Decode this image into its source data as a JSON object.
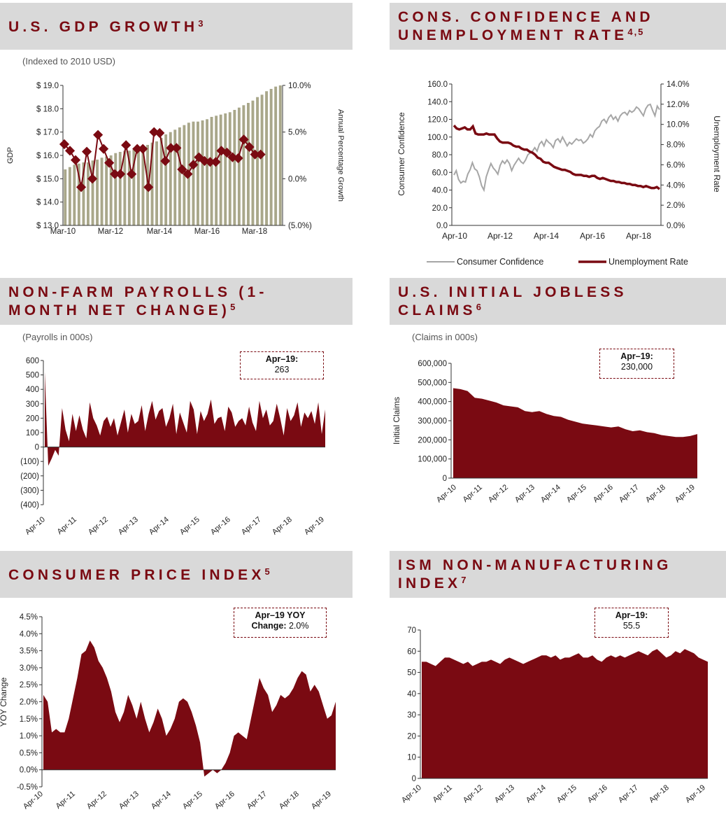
{
  "colors": {
    "accent": "#7a0a12",
    "header_bg": "#d9d9d9",
    "bar": "#a9a78a",
    "gray_line": "#a6a6a6",
    "fill": "#7a0a12"
  },
  "gdp": {
    "title": "U.S. GDP GROWTH",
    "sup": "3",
    "subtitle": "(Indexed to 2010 USD)",
    "chart_data": {
      "type": "bar+line",
      "title": "U.S. GDP Growth",
      "ylabel": "GDP",
      "y2label": "Annual Percentage  Growth",
      "ylim": [
        13.0,
        19.0
      ],
      "y2lim": [
        -5.0,
        10.0
      ],
      "y_ticks": [
        "$ 19.0",
        "$ 18.0",
        "$ 17.0",
        "$ 16.0",
        "$ 15.0",
        "$ 14.0",
        "$ 13.0"
      ],
      "y2_ticks": [
        "10.0%",
        "5.0%",
        "0.0%",
        "(5.0%)"
      ],
      "x_ticks": [
        "Mar-10",
        "Mar-12",
        "Mar-14",
        "Mar-16",
        "Mar-18"
      ],
      "gdp": [
        15.4,
        15.5,
        15.6,
        15.65,
        15.7,
        15.7,
        15.78,
        15.82,
        15.9,
        15.95,
        16.0,
        16.1,
        16.15,
        16.2,
        16.2,
        16.25,
        16.3,
        16.35,
        16.45,
        16.55,
        16.6,
        16.75,
        16.9,
        17.0,
        17.1,
        17.2,
        17.3,
        17.4,
        17.45,
        17.45,
        17.5,
        17.55,
        17.65,
        17.7,
        17.75,
        17.8,
        17.85,
        17.95,
        18.05,
        18.15,
        18.25,
        18.35,
        18.5,
        18.6,
        18.75,
        18.85,
        18.95,
        19.0
      ],
      "growth": [
        3.7,
        3.0,
        2.0,
        -0.9,
        2.9,
        0.0,
        4.7,
        3.2,
        1.7,
        0.5,
        0.5,
        3.6,
        0.5,
        3.2,
        3.2,
        -0.9,
        5.0,
        4.9,
        1.9,
        3.3,
        3.3,
        1.0,
        0.5,
        1.5,
        2.3,
        1.9,
        1.8,
        1.8,
        3.0,
        2.8,
        2.3,
        2.2,
        4.2,
        3.4,
        2.6,
        2.6
      ]
    }
  },
  "cons": {
    "title": "CONS. CONFIDENCE AND\nUNEMPLOYMENT RATE",
    "sup": "4,5",
    "chart_data": {
      "type": "line",
      "ylabel": "Consumer  Confidence",
      "y2label": "Unemployment  Rate",
      "ylim": [
        0,
        160
      ],
      "y2lim": [
        0,
        14
      ],
      "y_ticks": [
        "160.0",
        "140.0",
        "120.0",
        "100.0",
        "80.0",
        "60.0",
        "40.0",
        "20.0",
        "0.0"
      ],
      "y2_ticks": [
        "14.0%",
        "12.0%",
        "10.0%",
        "8.0%",
        "6.0%",
        "4.0%",
        "2.0%",
        "0.0%"
      ],
      "x_ticks": [
        "Apr-10",
        "Apr-12",
        "Apr-14",
        "Apr-16",
        "Apr-18"
      ],
      "legend": [
        "Consumer Confidence",
        "Unemployment Rate"
      ],
      "series": [
        {
          "name": "Consumer Confidence",
          "values": [
            57,
            62,
            52,
            48,
            50,
            49,
            58,
            63,
            71,
            64,
            62,
            55,
            45,
            40,
            55,
            63,
            70,
            65,
            62,
            58,
            68,
            73,
            70,
            74,
            70,
            62,
            68,
            72,
            76,
            72,
            70,
            74,
            80,
            82,
            84,
            88,
            84,
            92,
            95,
            90,
            97,
            94,
            92,
            88,
            96,
            98,
            94,
            100,
            95,
            90,
            94,
            92,
            95,
            98,
            96,
            97,
            93,
            95,
            98,
            103,
            100,
            107,
            110,
            112,
            118,
            120,
            116,
            122,
            125,
            120,
            123,
            118,
            124,
            127,
            128,
            125,
            130,
            128,
            130,
            134,
            132,
            128,
            124,
            132,
            136,
            137,
            130,
            124,
            135,
            131
          ]
        },
        {
          "name": "Unemployment Rate",
          "values": [
            9.9,
            9.6,
            9.5,
            9.6,
            9.7,
            9.5,
            9.5,
            9.8,
            9.1,
            9.0,
            9.0,
            9.0,
            9.1,
            9.0,
            9.0,
            9.0,
            8.6,
            8.3,
            8.2,
            8.2,
            8.2,
            8.1,
            7.9,
            7.8,
            7.8,
            7.6,
            7.5,
            7.5,
            7.3,
            7.2,
            7.0,
            6.7,
            6.6,
            6.3,
            6.2,
            6.2,
            6.0,
            5.8,
            5.7,
            5.6,
            5.5,
            5.5,
            5.4,
            5.3,
            5.1,
            5.0,
            5.0,
            5.0,
            4.9,
            4.9,
            4.8,
            4.9,
            4.9,
            4.7,
            4.6,
            4.7,
            4.6,
            4.5,
            4.4,
            4.4,
            4.3,
            4.3,
            4.2,
            4.2,
            4.1,
            4.1,
            4.0,
            4.0,
            3.9,
            3.9,
            3.8,
            3.9,
            3.8,
            3.7,
            3.7,
            3.8,
            3.6
          ]
        }
      ]
    }
  },
  "nfp": {
    "title": "NON-FARM PAYROLLS (1-\nMONTH NET CHANGE)",
    "sup": "5",
    "subtitle": "(Payrolls in 000s)",
    "callout": {
      "label": "Apr–19:",
      "value": "263"
    },
    "chart_data": {
      "type": "area",
      "ylim": [
        -400,
        600
      ],
      "y_ticks": [
        "600",
        "500",
        "400",
        "300",
        "200",
        "100",
        "0",
        "(100)",
        "(200)",
        "(300)",
        "(400)"
      ],
      "x_ticks": [
        "Apr-10",
        "Apr-11",
        "Apr-12",
        "Apr-13",
        "Apr-14",
        "Apr-15",
        "Apr-16",
        "Apr-17",
        "Apr-18",
        "Apr-19"
      ],
      "values": [
        520,
        -130,
        -80,
        -20,
        -60,
        270,
        120,
        40,
        230,
        110,
        220,
        120,
        60,
        310,
        200,
        150,
        80,
        180,
        210,
        140,
        200,
        80,
        170,
        260,
        100,
        230,
        160,
        180,
        290,
        110,
        230,
        320,
        190,
        250,
        270,
        140,
        200,
        300,
        90,
        240,
        170,
        100,
        320,
        260,
        90,
        250,
        180,
        230,
        330,
        160,
        200,
        210,
        110,
        280,
        240,
        140,
        180,
        200,
        150,
        280,
        170,
        110,
        320,
        200,
        260,
        150,
        180,
        300,
        200,
        80,
        270,
        180,
        220,
        310,
        140,
        240,
        200,
        250,
        160,
        310,
        90,
        260
      ]
    }
  },
  "claims": {
    "title": "U.S. INITIAL JOBLESS\nCLAIMS",
    "sup": "6",
    "subtitle": "(Claims in 000s)",
    "callout": {
      "label": "Apr–19:",
      "value": "230,000"
    },
    "chart_data": {
      "type": "area",
      "ylabel": "Initial Claims",
      "ylim": [
        0,
        600000
      ],
      "y_ticks": [
        "600,000",
        "500,000",
        "400,000",
        "300,000",
        "200,000",
        "100,000",
        "0"
      ],
      "x_ticks": [
        "Apr-10",
        "Apr-11",
        "Apr-12",
        "Apr-13",
        "Apr-14",
        "Apr-15",
        "Apr-16",
        "Apr-17",
        "Apr-18",
        "Apr-19"
      ],
      "values": [
        470000,
        465000,
        455000,
        420000,
        415000,
        405000,
        395000,
        380000,
        375000,
        370000,
        350000,
        345000,
        350000,
        335000,
        325000,
        320000,
        305000,
        295000,
        285000,
        280000,
        275000,
        270000,
        265000,
        270000,
        255000,
        245000,
        250000,
        240000,
        235000,
        225000,
        220000,
        215000,
        215000,
        220000,
        230000
      ]
    }
  },
  "cpi": {
    "title": "CONSUMER PRICE INDEX",
    "sup": "5",
    "callout": {
      "label": "Apr–19 YOY",
      "label2": "Change:",
      "value": "2.0%"
    },
    "chart_data": {
      "type": "area",
      "ylabel": "YOY Change",
      "ylim": [
        -0.5,
        4.5
      ],
      "y_ticks": [
        "4.5%",
        "4.0%",
        "3.5%",
        "3.0%",
        "2.5%",
        "2.0%",
        "1.5%",
        "1.0%",
        "0.5%",
        "0.0%",
        "-0.5%"
      ],
      "x_ticks": [
        "Apr-10",
        "Apr-11",
        "Apr-12",
        "Apr-13",
        "Apr-14",
        "Apr-15",
        "Apr-16",
        "Apr-17",
        "Apr-18",
        "Apr-19"
      ],
      "values": [
        2.2,
        2.0,
        1.1,
        1.2,
        1.1,
        1.1,
        1.5,
        2.1,
        2.7,
        3.4,
        3.5,
        3.8,
        3.6,
        3.2,
        3.0,
        2.7,
        2.3,
        1.7,
        1.4,
        1.7,
        2.2,
        1.9,
        1.5,
        2.0,
        1.5,
        1.1,
        1.4,
        1.8,
        1.5,
        1.0,
        1.2,
        1.5,
        2.0,
        2.1,
        2.0,
        1.7,
        1.3,
        0.8,
        -0.2,
        -0.1,
        0.0,
        -0.1,
        0.0,
        0.2,
        0.5,
        1.0,
        1.1,
        1.0,
        0.9,
        1.5,
        2.1,
        2.7,
        2.4,
        2.2,
        1.7,
        1.9,
        2.2,
        2.1,
        2.2,
        2.4,
        2.7,
        2.9,
        2.8,
        2.3,
        2.5,
        2.3,
        1.9,
        1.5,
        1.6,
        2.0
      ]
    }
  },
  "ism": {
    "title": "ISM NON-MANUFACTURING\nINDEX",
    "sup": "7",
    "callout": {
      "label": "Apr–19:",
      "value": "55.5"
    },
    "chart_data": {
      "type": "area",
      "ylim": [
        0,
        70
      ],
      "y_ticks": [
        "70",
        "60",
        "50",
        "40",
        "30",
        "20",
        "10",
        "0"
      ],
      "x_ticks": [
        "Apr-10",
        "Apr-11",
        "Apr-12",
        "Apr-13",
        "Apr-14",
        "Apr-15",
        "Apr-16",
        "Apr-17",
        "Apr-18",
        "Apr-19"
      ],
      "values": [
        55,
        55,
        54,
        53,
        55,
        57,
        57,
        56,
        55,
        54,
        55,
        53,
        54,
        55,
        55,
        56,
        55,
        54,
        56,
        57,
        56,
        55,
        54,
        55,
        56,
        57,
        58,
        58,
        57,
        58,
        56,
        57,
        57,
        58,
        59,
        57,
        57,
        58,
        56,
        55,
        57,
        58,
        57,
        58,
        57,
        58,
        59,
        60,
        59,
        58,
        60,
        61,
        59,
        57,
        58,
        60,
        59,
        61,
        60,
        59,
        57,
        56,
        55
      ]
    }
  }
}
